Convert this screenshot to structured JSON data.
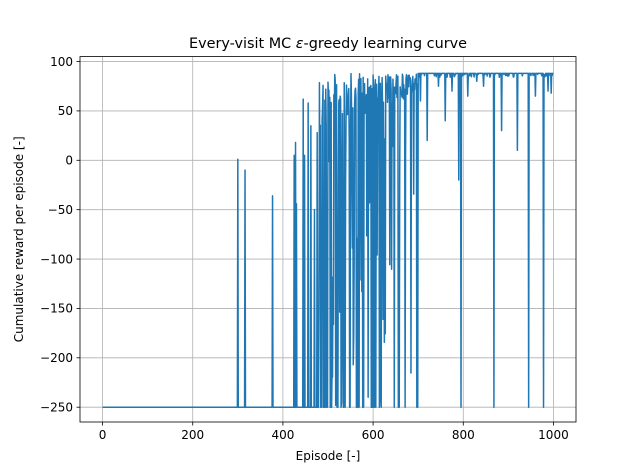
{
  "chart_data": {
    "type": "line",
    "title_prefix": "Every-visit MC ",
    "title_epsilon": "ε",
    "title_suffix": "-greedy learning curve",
    "xlabel": "Episode [-]",
    "ylabel": "Cumulative reward per episode [-]",
    "xlim": [
      -50,
      1050
    ],
    "ylim": [
      -265,
      105
    ],
    "xticks": [
      0,
      200,
      400,
      600,
      800,
      1000
    ],
    "yticks": [
      -250,
      -200,
      -150,
      -100,
      -50,
      0,
      50,
      100
    ],
    "xtick_labels": [
      "0",
      "200",
      "400",
      "600",
      "800",
      "1000"
    ],
    "ytick_labels": [
      "−250",
      "−200",
      "−150",
      "−100",
      "−50",
      "0",
      "50",
      "100"
    ],
    "grid": true,
    "series_color": "#1f77b4",
    "x_range": [
      0,
      1000
    ],
    "floor_value": -250,
    "isolated_spikes": [
      {
        "x": 300,
        "y": 1
      },
      {
        "x": 316,
        "y": -10
      },
      {
        "x": 377,
        "y": -36
      },
      {
        "x": 425,
        "y": 5
      },
      {
        "x": 428,
        "y": 18
      },
      {
        "x": 430,
        "y": -44
      },
      {
        "x": 445,
        "y": 62
      },
      {
        "x": 448,
        "y": 5
      },
      {
        "x": 456,
        "y": 58
      },
      {
        "x": 462,
        "y": 35
      },
      {
        "x": 470,
        "y": -50
      },
      {
        "x": 476,
        "y": 28
      }
    ],
    "dense_region": {
      "start": 480,
      "end": 700,
      "upper": 88
    },
    "converged_region": {
      "start": 700,
      "end": 1000,
      "value": 88
    },
    "late_dips": [
      {
        "x": 705,
        "y": 60
      },
      {
        "x": 720,
        "y": 20
      },
      {
        "x": 745,
        "y": 75
      },
      {
        "x": 760,
        "y": 40
      },
      {
        "x": 775,
        "y": 70
      },
      {
        "x": 790,
        "y": -20
      },
      {
        "x": 795,
        "y": -250
      },
      {
        "x": 810,
        "y": 65
      },
      {
        "x": 830,
        "y": 80
      },
      {
        "x": 845,
        "y": 75
      },
      {
        "x": 868,
        "y": -250
      },
      {
        "x": 885,
        "y": 30
      },
      {
        "x": 920,
        "y": 10
      },
      {
        "x": 945,
        "y": -250
      },
      {
        "x": 960,
        "y": 65
      },
      {
        "x": 978,
        "y": -250
      },
      {
        "x": 988,
        "y": 70
      },
      {
        "x": 995,
        "y": 68
      }
    ]
  }
}
